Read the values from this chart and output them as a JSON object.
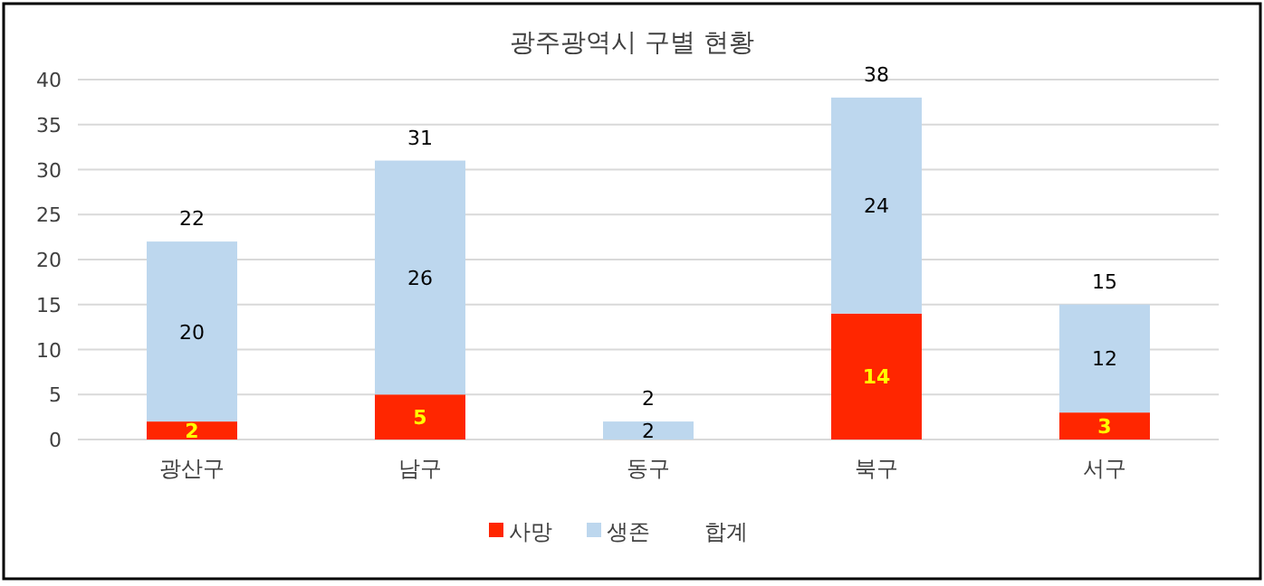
{
  "chart_data": {
    "type": "bar",
    "title": "광주광역시 구별 현황",
    "stacked": true,
    "categories": [
      "광산구",
      "남구",
      "동구",
      "북구",
      "서구"
    ],
    "series": [
      {
        "name": "사망",
        "color": "#ff2600",
        "values": [
          2,
          5,
          0,
          14,
          3
        ],
        "value_labels": [
          "2",
          "5",
          null,
          "14",
          "3"
        ]
      },
      {
        "name": "생존",
        "color": "#bdd7ee",
        "values": [
          20,
          26,
          2,
          24,
          12
        ],
        "value_labels": [
          "20",
          "26",
          "2",
          "24",
          "12"
        ]
      }
    ],
    "totals": [
      "22",
      "31",
      "2",
      "38",
      "15"
    ],
    "annotations": [
      "합계"
    ],
    "ylim": [
      0,
      40
    ],
    "yticks": [
      0,
      5,
      10,
      15,
      20,
      25,
      30,
      35,
      40
    ],
    "grid": "y",
    "legend": "bottom"
  }
}
